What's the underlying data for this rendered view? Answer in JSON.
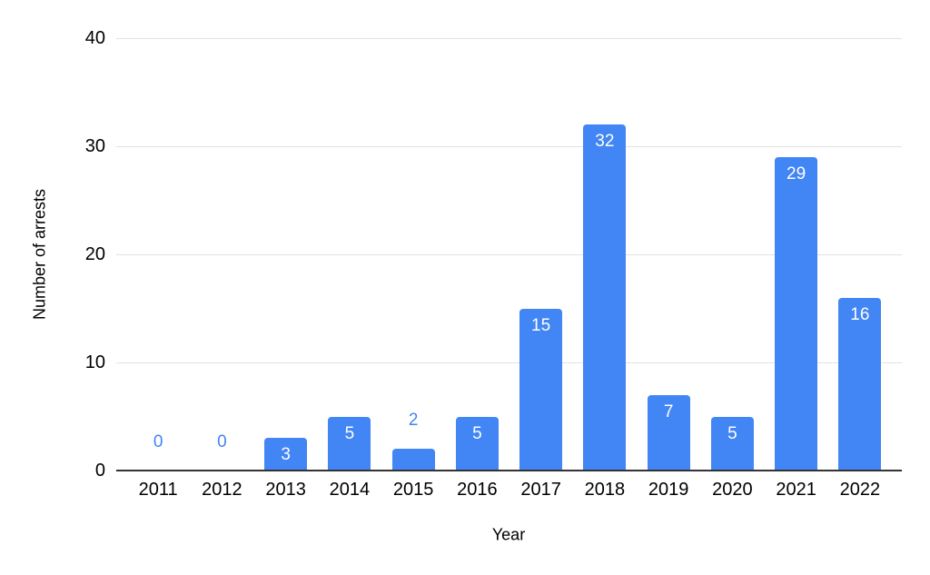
{
  "chart_data": {
    "type": "bar",
    "xlabel": "Year",
    "ylabel": "Number of arrests",
    "categories": [
      "2011",
      "2012",
      "2013",
      "2014",
      "2015",
      "2016",
      "2017",
      "2018",
      "2019",
      "2020",
      "2021",
      "2022"
    ],
    "values": [
      0,
      0,
      3,
      5,
      2,
      5,
      15,
      32,
      7,
      5,
      29,
      16
    ],
    "data_labels": [
      0,
      0,
      3,
      5,
      2,
      5,
      15,
      32,
      7,
      5,
      29,
      16
    ],
    "ylim": [
      0,
      40
    ],
    "yticks": [
      0,
      10,
      20,
      30,
      40
    ],
    "grid": true,
    "legend": false,
    "colors": {
      "bar": "#4285F4",
      "data_label_inside": "#FFFFFF",
      "data_label_outside": "#4285F4",
      "gridline": "#E2E2E2",
      "axis_line": "#333333",
      "tick_label": "#000000",
      "axis_title": "#000000",
      "background": "#FFFFFF"
    }
  }
}
